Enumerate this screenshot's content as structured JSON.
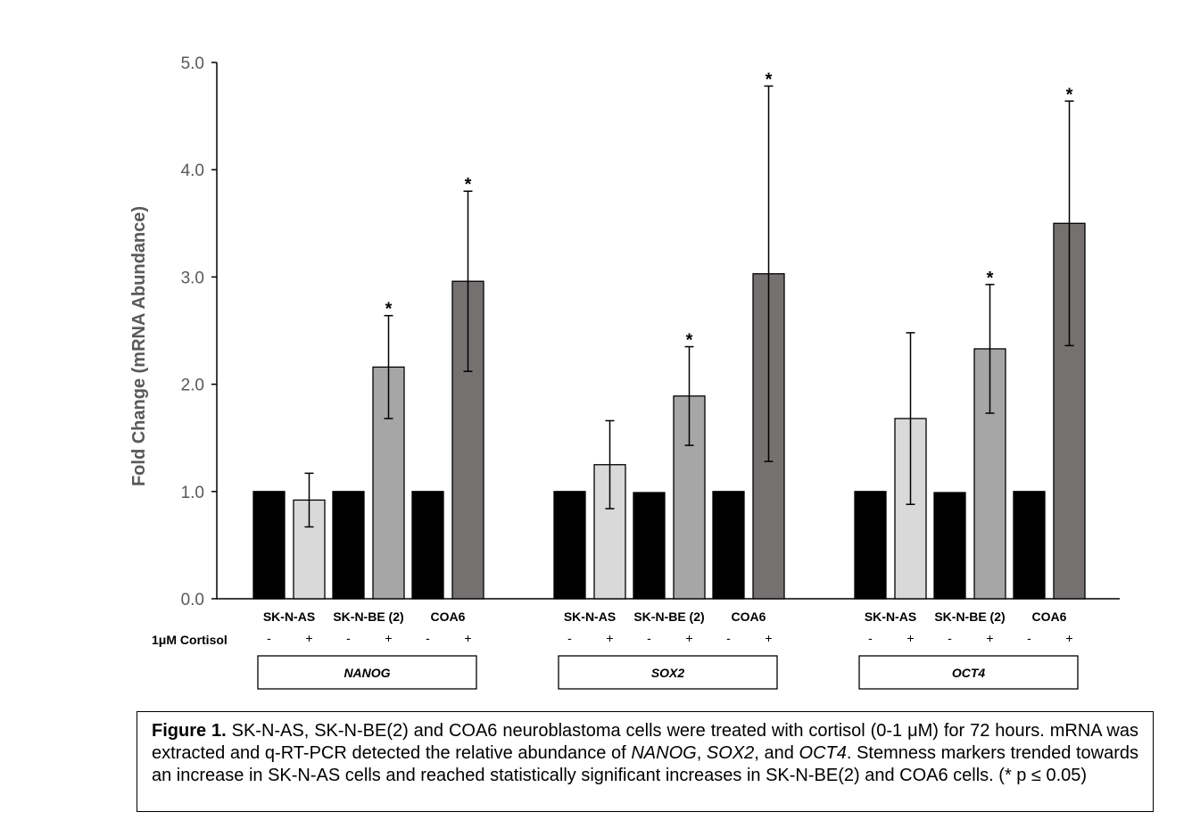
{
  "chart_data": {
    "type": "bar",
    "title": "",
    "xlabel": "",
    "ylabel": "Fold Change (mRNA Abundance)",
    "ylim": [
      0,
      5
    ],
    "yticks": [
      "0.0",
      "1.0",
      "2.0",
      "3.0",
      "4.0",
      "5.0"
    ],
    "treatment_label": "1μM Cortisol",
    "groups": [
      {
        "gene": "NANOG",
        "cell_lines": [
          "SK-N-AS",
          "SK-N-BE (2)",
          "COA6"
        ],
        "bars": [
          {
            "cell_line": "SK-N-AS",
            "cortisol": "-",
            "value": 1.0,
            "error": null,
            "significant": false,
            "color": "#000000"
          },
          {
            "cell_line": "SK-N-AS",
            "cortisol": "+",
            "value": 0.92,
            "error": 0.25,
            "significant": false,
            "color": "#d9d9d9"
          },
          {
            "cell_line": "SK-N-BE (2)",
            "cortisol": "-",
            "value": 1.0,
            "error": null,
            "significant": false,
            "color": "#000000"
          },
          {
            "cell_line": "SK-N-BE (2)",
            "cortisol": "+",
            "value": 2.16,
            "error": 0.48,
            "significant": true,
            "color": "#a6a6a6"
          },
          {
            "cell_line": "COA6",
            "cortisol": "-",
            "value": 1.0,
            "error": null,
            "significant": false,
            "color": "#000000"
          },
          {
            "cell_line": "COA6",
            "cortisol": "+",
            "value": 2.96,
            "error": 0.84,
            "significant": true,
            "color": "#767171"
          }
        ]
      },
      {
        "gene": "SOX2",
        "cell_lines": [
          "SK-N-AS",
          "SK-N-BE (2)",
          "COA6"
        ],
        "bars": [
          {
            "cell_line": "SK-N-AS",
            "cortisol": "-",
            "value": 1.0,
            "error": null,
            "significant": false,
            "color": "#000000"
          },
          {
            "cell_line": "SK-N-AS",
            "cortisol": "+",
            "value": 1.25,
            "error": 0.41,
            "significant": false,
            "color": "#d9d9d9"
          },
          {
            "cell_line": "SK-N-BE (2)",
            "cortisol": "-",
            "value": 0.99,
            "error": null,
            "significant": false,
            "color": "#000000"
          },
          {
            "cell_line": "SK-N-BE (2)",
            "cortisol": "+",
            "value": 1.89,
            "error": 0.46,
            "significant": true,
            "color": "#a6a6a6"
          },
          {
            "cell_line": "COA6",
            "cortisol": "-",
            "value": 1.0,
            "error": null,
            "significant": false,
            "color": "#000000"
          },
          {
            "cell_line": "COA6",
            "cortisol": "+",
            "value": 3.03,
            "error": 1.75,
            "significant": true,
            "color": "#767171"
          }
        ]
      },
      {
        "gene": "OCT4",
        "cell_lines": [
          "SK-N-AS",
          "SK-N-BE (2)",
          "COA6"
        ],
        "bars": [
          {
            "cell_line": "SK-N-AS",
            "cortisol": "-",
            "value": 1.0,
            "error": null,
            "significant": false,
            "color": "#000000"
          },
          {
            "cell_line": "SK-N-AS",
            "cortisol": "+",
            "value": 1.68,
            "error": 0.8,
            "significant": false,
            "color": "#d9d9d9"
          },
          {
            "cell_line": "SK-N-BE (2)",
            "cortisol": "-",
            "value": 0.99,
            "error": null,
            "significant": false,
            "color": "#000000"
          },
          {
            "cell_line": "SK-N-BE (2)",
            "cortisol": "+",
            "value": 2.33,
            "error": 0.6,
            "significant": true,
            "color": "#a6a6a6"
          },
          {
            "cell_line": "COA6",
            "cortisol": "-",
            "value": 1.0,
            "error": null,
            "significant": false,
            "color": "#000000"
          },
          {
            "cell_line": "COA6",
            "cortisol": "+",
            "value": 3.5,
            "error": 1.14,
            "significant": true,
            "color": "#767171"
          }
        ]
      }
    ],
    "significance_marker": "*",
    "grid": false,
    "legend": "none"
  },
  "caption": {
    "label": "Figure 1.",
    "text_1": " SK-N-AS, SK-N-BE(2) and COA6 neuroblastoma cells were treated with cortisol (0-1 μM) for 72 hours. mRNA was extracted and q-RT-PCR detected the relative abundance of ",
    "gene_1": "NANOG",
    "sep_1": ", ",
    "gene_2": "SOX2",
    "sep_2": ", and ",
    "gene_3": "OCT4",
    "text_2": ". Stemness markers trended towards an increase in SK-N-AS cells and reached statistically significant increases in SK-N-BE(2) and COA6 cells. (* p ≤ 0.05)"
  }
}
